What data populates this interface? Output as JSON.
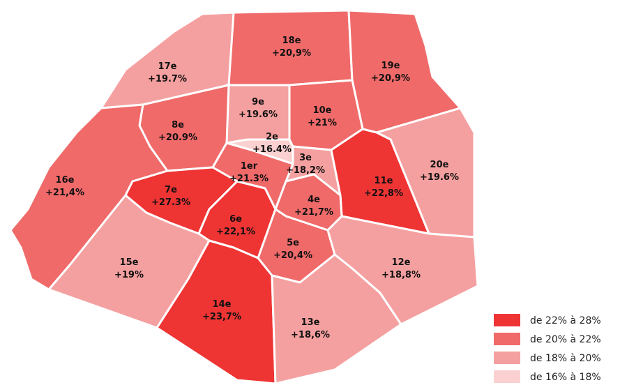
{
  "districts": [
    {
      "name": "18e",
      "label": "+20,9%",
      "color": "#f06a6a"
    },
    {
      "name": "17e",
      "label": "+19.7%",
      "color": "#f5a0a0"
    },
    {
      "name": "19e",
      "label": "+20,9%",
      "color": "#f06a6a"
    },
    {
      "name": "9e",
      "label": "+19.6%",
      "color": "#f5a0a0"
    },
    {
      "name": "10e",
      "label": "+21%",
      "color": "#f06a6a"
    },
    {
      "name": "8e",
      "label": "+20.9%",
      "color": "#f06a6a"
    },
    {
      "name": "2e",
      "label": "+16.4%",
      "color": "#fbd0d0"
    },
    {
      "name": "3e",
      "label": "+18,2%",
      "color": "#f5a0a0"
    },
    {
      "name": "20e",
      "label": "+19.6%",
      "color": "#f5a0a0"
    },
    {
      "name": "16e",
      "label": "+21,4%",
      "color": "#f06a6a"
    },
    {
      "name": "1er",
      "label": "+21.3%",
      "color": "#f06a6a"
    },
    {
      "name": "11e",
      "label": "+22,8%",
      "color": "#ef3434"
    },
    {
      "name": "7e",
      "label": "+27.3%",
      "color": "#ef3434"
    },
    {
      "name": "4e",
      "label": "+21,7%",
      "color": "#f06a6a"
    },
    {
      "name": "6e",
      "label": "+22,1%",
      "color": "#ef3434"
    },
    {
      "name": "5e",
      "label": "+20,4%",
      "color": "#f06a6a"
    },
    {
      "name": "15e",
      "label": "+19%",
      "color": "#f5a0a0"
    },
    {
      "name": "12e",
      "label": "+18,8%",
      "color": "#f5a0a0"
    },
    {
      "name": "14e",
      "label": "+23,7%",
      "color": "#ef3434"
    },
    {
      "name": "13e",
      "label": "+18,6%",
      "color": "#f5a0a0"
    }
  ],
  "legend": [
    {
      "label": "de 22% à 28%",
      "color": "#ef3434"
    },
    {
      "label": "de 20% à 22%",
      "color": "#f06a6a"
    },
    {
      "label": "de 18% à 20%",
      "color": "#f5a0a0"
    },
    {
      "label": "de 16% à 18%",
      "color": "#fbd0d0"
    }
  ]
}
